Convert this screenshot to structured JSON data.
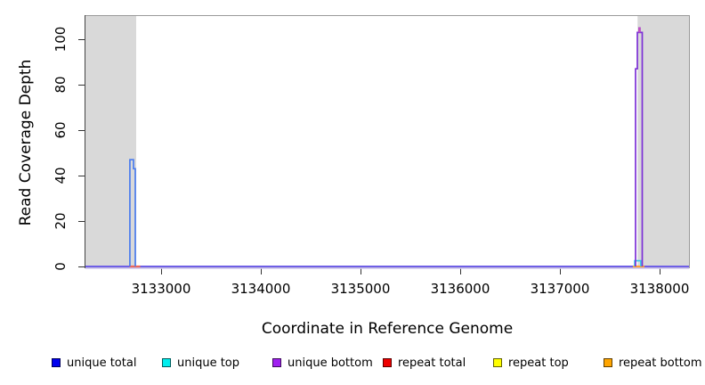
{
  "chart_data": {
    "type": "line",
    "title": "",
    "xlabel": "Coordinate in Reference Genome",
    "ylabel": "Read Coverage Depth",
    "x_domain": [
      3132232,
      3138310
    ],
    "y_domain": [
      0,
      110.6
    ],
    "x_ticks": [
      3133000,
      3134000,
      3135000,
      3136000,
      3137000,
      3138000
    ],
    "x_tick_labels": [
      "3133000",
      "3134000",
      "3135000",
      "3136000",
      "3137000",
      "3138000"
    ],
    "y_ticks": [
      0,
      20,
      40,
      60,
      80,
      100
    ],
    "y_tick_labels": [
      "0",
      "20",
      "40",
      "60",
      "80",
      "100"
    ],
    "grid": "off",
    "masked_regions": {
      "color": "#d9d9d9",
      "ranges": [
        [
          3132232,
          3132750
        ],
        [
          3137779,
          3138310
        ]
      ]
    },
    "zero_line": {
      "color": "#6f5fe6",
      "shadow_color": "#cfc6f4"
    },
    "series": [
      {
        "name": "repeat total (base segment)",
        "color": "#ee675c",
        "width": 2.2,
        "points": [
          [
            3132683,
            0
          ],
          [
            3132790,
            0
          ]
        ]
      },
      {
        "name": "repeat bottom (base segment)",
        "color": "#ffa033",
        "width": 2.2,
        "points": [
          [
            3137732,
            0
          ],
          [
            3137847,
            0
          ]
        ]
      },
      {
        "name": "unique top (small bump)",
        "color": "#2fc9ea",
        "width": 1.6,
        "points": [
          [
            3137750,
            0
          ],
          [
            3137750,
            2.5
          ],
          [
            3137812,
            2.5
          ],
          [
            3137812,
            0
          ]
        ]
      },
      {
        "name": "unique total (left peak)",
        "color": "#4a7cee",
        "width": 1.7,
        "points": [
          [
            3132687,
            0
          ],
          [
            3132687,
            47
          ],
          [
            3132723,
            47
          ],
          [
            3132723,
            43
          ],
          [
            3132741,
            43
          ],
          [
            3132741,
            0
          ]
        ]
      },
      {
        "name": "unique bottom (right peak)",
        "color": "#7c2fd6",
        "width": 1.7,
        "points": [
          [
            3137759,
            0
          ],
          [
            3137759,
            87
          ],
          [
            3137777,
            87
          ],
          [
            3137777,
            103
          ],
          [
            3137794,
            103
          ],
          [
            3137794,
            105
          ],
          [
            3137803,
            105
          ],
          [
            3137803,
            103
          ],
          [
            3137826,
            103
          ],
          [
            3137826,
            0
          ]
        ]
      },
      {
        "name": "right peak tip highlight",
        "color": "#c44fc0",
        "width": 1.4,
        "points": [
          [
            3137794,
            103
          ],
          [
            3137794,
            105
          ],
          [
            3137803,
            105
          ],
          [
            3137803,
            103
          ]
        ]
      }
    ],
    "legend": {
      "position": "bottom",
      "entries": [
        {
          "label": "unique total",
          "fill": "#0000ee",
          "border": "#000066"
        },
        {
          "label": "unique top",
          "fill": "#00eeee",
          "border": "#00565e"
        },
        {
          "label": "unique bottom",
          "fill": "#a020f0",
          "border": "#3d0a5e"
        },
        {
          "label": "repeat total",
          "fill": "#ee0000",
          "border": "#5e0000"
        },
        {
          "label": "repeat top",
          "fill": "#ffff00",
          "border": "#5e5e00"
        },
        {
          "label": "repeat bottom",
          "fill": "#ffa500",
          "border": "#5e3d00"
        }
      ]
    }
  }
}
